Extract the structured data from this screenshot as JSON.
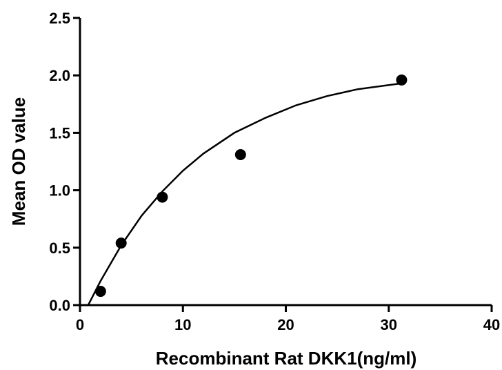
{
  "chart_data": {
    "type": "scatter",
    "title": "",
    "xlabel": "Recombinant Rat DKK1(ng/ml)",
    "ylabel": "Mean OD value",
    "xlim": [
      0,
      40
    ],
    "ylim": [
      0,
      2.5
    ],
    "xticks": [
      "0",
      "10",
      "20",
      "30",
      "40"
    ],
    "yticks": [
      "0.0",
      "0.5",
      "1.0",
      "1.5",
      "2.0",
      "2.5"
    ],
    "grid": false,
    "legend": "none",
    "series": [
      {
        "points": [
          {
            "x": 2,
            "y": 0.12
          },
          {
            "x": 4,
            "y": 0.54
          },
          {
            "x": 8,
            "y": 0.94
          },
          {
            "x": 15.6,
            "y": 1.31
          },
          {
            "x": 31.25,
            "y": 1.96
          }
        ],
        "fit_curve": [
          {
            "x": 0.8,
            "y": 0.0
          },
          {
            "x": 2,
            "y": 0.21
          },
          {
            "x": 4,
            "y": 0.52
          },
          {
            "x": 6,
            "y": 0.78
          },
          {
            "x": 8,
            "y": 0.99
          },
          {
            "x": 10,
            "y": 1.17
          },
          {
            "x": 12,
            "y": 1.32
          },
          {
            "x": 15,
            "y": 1.5
          },
          {
            "x": 18,
            "y": 1.63
          },
          {
            "x": 21,
            "y": 1.74
          },
          {
            "x": 24,
            "y": 1.82
          },
          {
            "x": 27,
            "y": 1.88
          },
          {
            "x": 31.25,
            "y": 1.93
          }
        ],
        "color": "#000000"
      }
    ]
  }
}
